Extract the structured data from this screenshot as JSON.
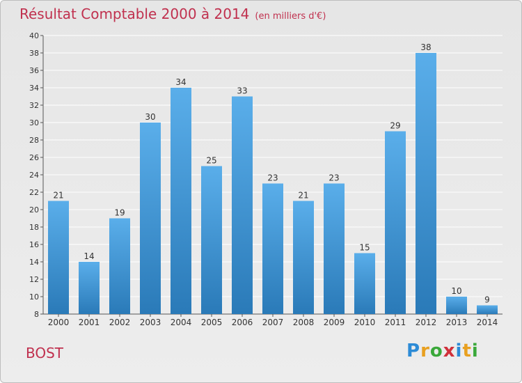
{
  "header": {
    "title": "Résultat Comptable 2000 à 2014",
    "unit": "(en milliers d'€)"
  },
  "footer": {
    "commune": "BOST",
    "brand": "Proxiti"
  },
  "colors": {
    "title": "#c0304e",
    "bar_top": "#5aaeea",
    "bar_bottom": "#2a7ab8"
  },
  "chart_data": {
    "type": "bar",
    "title": "Résultat Comptable 2000 à 2014",
    "categories": [
      "2000",
      "2001",
      "2002",
      "2003",
      "2004",
      "2005",
      "2006",
      "2007",
      "2008",
      "2009",
      "2010",
      "2011",
      "2012",
      "2013",
      "2014"
    ],
    "values": [
      21,
      14,
      19,
      30,
      34,
      25,
      33,
      23,
      21,
      23,
      15,
      29,
      38,
      10,
      9
    ],
    "ylim": [
      8,
      40
    ],
    "yticks": [
      8,
      10,
      12,
      14,
      16,
      18,
      20,
      22,
      24,
      26,
      28,
      30,
      32,
      34,
      36,
      38,
      40
    ],
    "grid": true,
    "legend": "none"
  }
}
